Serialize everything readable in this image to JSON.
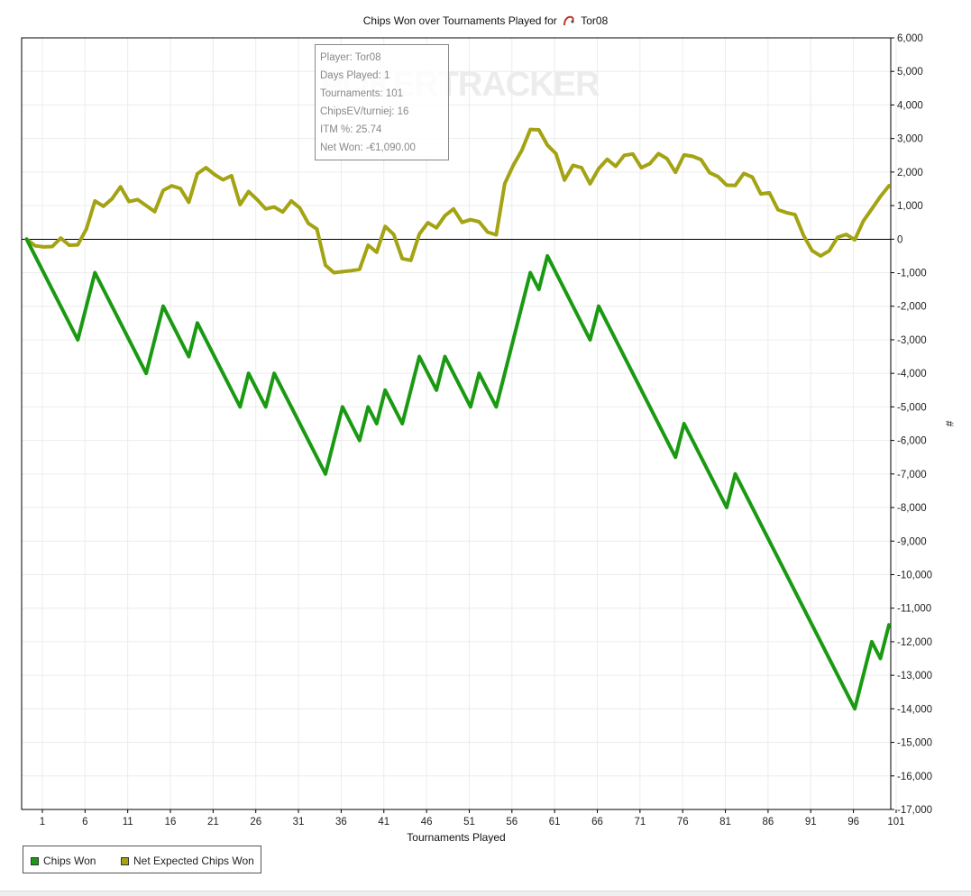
{
  "chart_title": {
    "prefix": "Chips Won over Tournaments Played for",
    "player": "Tor08"
  },
  "tooltip": {
    "player": "Player: Tor08",
    "days_played": "Days Played: 1",
    "tournaments": "Tournaments: 101",
    "chips_ev": "ChipsEV/turniej: 16",
    "itm": "ITM %: 25.74",
    "net_won": "Net Won: -€1,090.00"
  },
  "watermark": "POKERTRACKER",
  "colors": {
    "chips_won": "#1a9a12",
    "net_expected": "#a3a313",
    "grid": "#ececec",
    "zero_line": "#000000"
  },
  "legend": {
    "chips_won": "Chips Won",
    "net_expected": "Net Expected Chips Won"
  },
  "chart_data": {
    "type": "line",
    "title": "Chips Won over Tournaments Played for Tor08",
    "xlabel": "Tournaments Played",
    "ylabel": "#",
    "xlim": [
      0,
      101
    ],
    "ylim": [
      -17000,
      6000
    ],
    "x_ticks": [
      "1",
      "6",
      "11",
      "16",
      "21",
      "26",
      "31",
      "36",
      "41",
      "46",
      "51",
      "56",
      "61",
      "66",
      "71",
      "76",
      "81",
      "86",
      "91",
      "96",
      "101"
    ],
    "y_ticks": [
      "6,000",
      "5,000",
      "4,000",
      "3,000",
      "2,000",
      "1,000",
      "0",
      "-1,000",
      "-2,000",
      "-3,000",
      "-4,000",
      "-5,000",
      "-6,000",
      "-7,000",
      "-8,000",
      "-9,000",
      "-10,000",
      "-11,000",
      "-12,000",
      "-13,000",
      "-14,000",
      "-15,000",
      "-16,000",
      "-17,000"
    ],
    "y_tick_values": [
      6000,
      5000,
      4000,
      3000,
      2000,
      1000,
      0,
      -1000,
      -2000,
      -3000,
      -4000,
      -5000,
      -6000,
      -7000,
      -8000,
      -9000,
      -10000,
      -11000,
      -12000,
      -13000,
      -14000,
      -15000,
      -16000,
      -17000
    ],
    "grid": true,
    "legend_position": "bottom-left",
    "series": [
      {
        "name": "Chips Won",
        "points": [
          [
            0,
            0
          ],
          [
            6,
            -3000
          ],
          [
            8,
            -1000
          ],
          [
            14,
            -4000
          ],
          [
            16,
            -2000
          ],
          [
            19,
            -3500
          ],
          [
            20,
            -2500
          ],
          [
            25,
            -5000
          ],
          [
            26,
            -4000
          ],
          [
            28,
            -5000
          ],
          [
            29,
            -4000
          ],
          [
            35,
            -7000
          ],
          [
            37,
            -5000
          ],
          [
            39,
            -6000
          ],
          [
            40,
            -5000
          ],
          [
            41,
            -5500
          ],
          [
            42,
            -4500
          ],
          [
            44,
            -5500
          ],
          [
            46,
            -3500
          ],
          [
            48,
            -4500
          ],
          [
            49,
            -3500
          ],
          [
            52,
            -5000
          ],
          [
            53,
            -4000
          ],
          [
            55,
            -5000
          ],
          [
            59,
            -1000
          ],
          [
            60,
            -1500
          ],
          [
            61,
            -500
          ],
          [
            66,
            -3000
          ],
          [
            67,
            -2000
          ],
          [
            76,
            -6500
          ],
          [
            77,
            -5500
          ],
          [
            82,
            -8000
          ],
          [
            83,
            -7000
          ],
          [
            97,
            -14000
          ],
          [
            99,
            -12000
          ],
          [
            100,
            -12500
          ],
          [
            101,
            -11500
          ]
        ]
      },
      {
        "name": "Net Expected Chips Won",
        "points": [
          [
            0,
            0
          ],
          [
            1,
            -200
          ],
          [
            2,
            -230
          ],
          [
            3,
            -220
          ],
          [
            4,
            30
          ],
          [
            5,
            -180
          ],
          [
            6,
            -170
          ],
          [
            7,
            300
          ],
          [
            8,
            1140
          ],
          [
            9,
            980
          ],
          [
            10,
            1200
          ],
          [
            11,
            1560
          ],
          [
            12,
            1120
          ],
          [
            13,
            1180
          ],
          [
            15,
            820
          ],
          [
            16,
            1450
          ],
          [
            17,
            1590
          ],
          [
            18,
            1510
          ],
          [
            19,
            1100
          ],
          [
            20,
            1950
          ],
          [
            21,
            2130
          ],
          [
            22,
            1930
          ],
          [
            23,
            1770
          ],
          [
            24,
            1890
          ],
          [
            25,
            1030
          ],
          [
            26,
            1420
          ],
          [
            27,
            1180
          ],
          [
            28,
            900
          ],
          [
            29,
            960
          ],
          [
            30,
            810
          ],
          [
            31,
            1140
          ],
          [
            32,
            930
          ],
          [
            33,
            470
          ],
          [
            34,
            300
          ],
          [
            35,
            -780
          ],
          [
            36,
            -1000
          ],
          [
            37,
            -970
          ],
          [
            38,
            -940
          ],
          [
            39,
            -900
          ],
          [
            40,
            -180
          ],
          [
            41,
            -390
          ],
          [
            42,
            380
          ],
          [
            43,
            140
          ],
          [
            44,
            -580
          ],
          [
            45,
            -630
          ],
          [
            46,
            150
          ],
          [
            47,
            490
          ],
          [
            48,
            340
          ],
          [
            49,
            700
          ],
          [
            50,
            900
          ],
          [
            51,
            500
          ],
          [
            52,
            580
          ],
          [
            53,
            520
          ],
          [
            54,
            210
          ],
          [
            55,
            130
          ],
          [
            56,
            1650
          ],
          [
            57,
            2200
          ],
          [
            58,
            2650
          ],
          [
            59,
            3270
          ],
          [
            60,
            3260
          ],
          [
            61,
            2800
          ],
          [
            62,
            2550
          ],
          [
            63,
            1760
          ],
          [
            64,
            2200
          ],
          [
            65,
            2130
          ],
          [
            66,
            1650
          ],
          [
            67,
            2100
          ],
          [
            68,
            2380
          ],
          [
            69,
            2170
          ],
          [
            70,
            2500
          ],
          [
            71,
            2540
          ],
          [
            72,
            2130
          ],
          [
            73,
            2250
          ],
          [
            74,
            2550
          ],
          [
            75,
            2400
          ],
          [
            76,
            1990
          ],
          [
            77,
            2510
          ],
          [
            78,
            2470
          ],
          [
            79,
            2370
          ],
          [
            80,
            1980
          ],
          [
            81,
            1860
          ],
          [
            82,
            1610
          ],
          [
            83,
            1600
          ],
          [
            84,
            1960
          ],
          [
            85,
            1850
          ],
          [
            86,
            1350
          ],
          [
            87,
            1380
          ],
          [
            88,
            880
          ],
          [
            89,
            790
          ],
          [
            90,
            730
          ],
          [
            91,
            110
          ],
          [
            92,
            -340
          ],
          [
            93,
            -500
          ],
          [
            94,
            -350
          ],
          [
            95,
            60
          ],
          [
            96,
            140
          ],
          [
            97,
            -20
          ],
          [
            98,
            540
          ],
          [
            99,
            900
          ],
          [
            100,
            1270
          ],
          [
            101,
            1590
          ]
        ]
      }
    ]
  }
}
